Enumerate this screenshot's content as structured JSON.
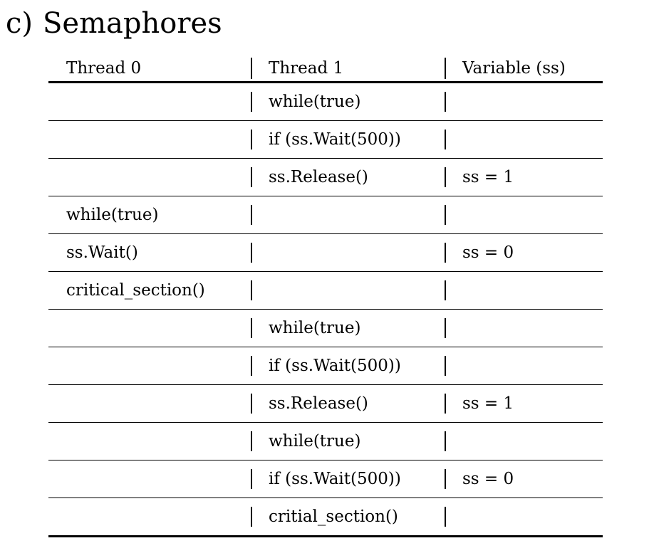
{
  "section": {
    "label": "c)",
    "title": "Semaphores"
  },
  "table": {
    "headers": [
      "Thread 0",
      "Thread 1",
      "Variable (ss)"
    ],
    "rows": [
      [
        "",
        "while(true)",
        ""
      ],
      [
        "",
        "if (ss.Wait(500))",
        ""
      ],
      [
        "",
        "ss.Release()",
        "ss = 1"
      ],
      [
        "while(true)",
        "",
        ""
      ],
      [
        "ss.Wait()",
        "",
        "ss = 0"
      ],
      [
        "critical_section()",
        "",
        ""
      ],
      [
        "",
        "while(true)",
        ""
      ],
      [
        "",
        "if (ss.Wait(500))",
        ""
      ],
      [
        "",
        "ss.Release()",
        "ss = 1"
      ],
      [
        "",
        "while(true)",
        ""
      ],
      [
        "",
        "if (ss.Wait(500))",
        "ss = 0"
      ],
      [
        "",
        "critial_section()",
        ""
      ]
    ]
  }
}
